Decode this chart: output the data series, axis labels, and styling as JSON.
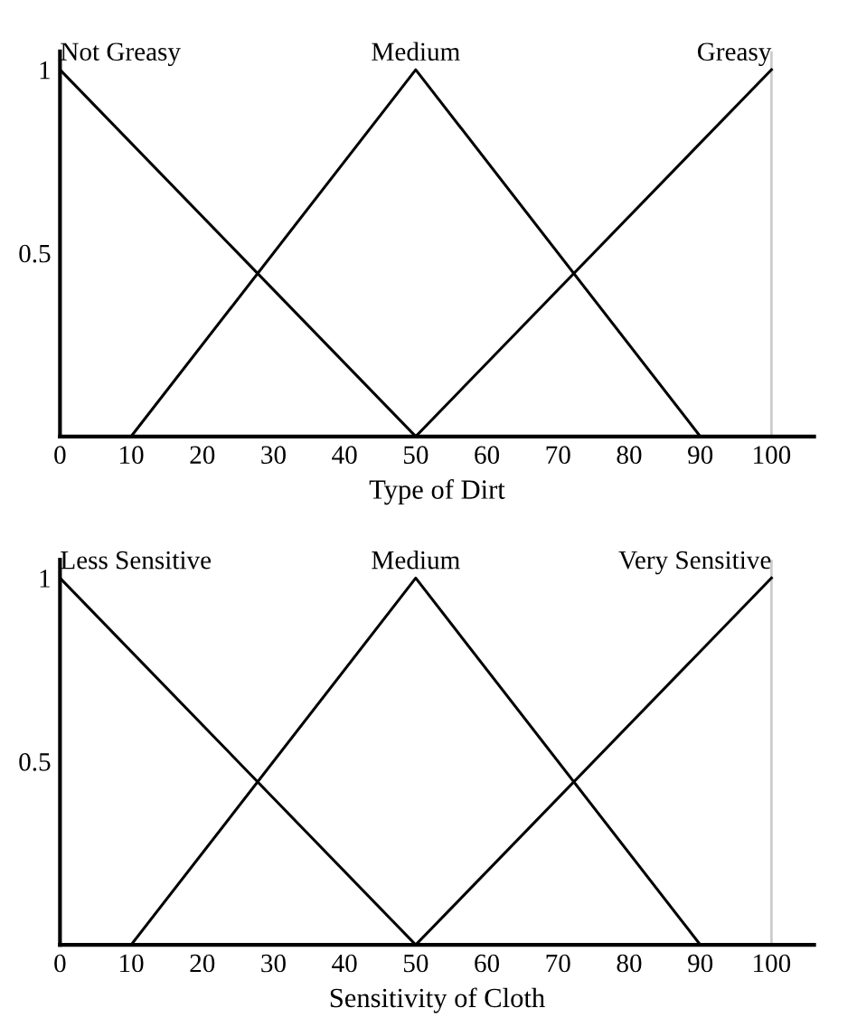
{
  "chart_data": [
    {
      "type": "line",
      "xlabel": "Type of Dirt",
      "xlim": [
        0,
        106
      ],
      "ylim": [
        0,
        1.05
      ],
      "xticks": [
        0,
        10,
        20,
        30,
        40,
        50,
        60,
        70,
        80,
        90,
        100
      ],
      "yticks": [
        0.5,
        1
      ],
      "grid": false,
      "legend": false,
      "marker": "none",
      "line_style": "solid",
      "ref_lines": [
        {
          "axis": "x",
          "value": 100,
          "color": "#cccccc"
        }
      ],
      "series": [
        {
          "name": "Not Greasy",
          "color": "#000000",
          "x": [
            0,
            50
          ],
          "values": [
            1,
            0
          ]
        },
        {
          "name": "Medium",
          "color": "#000000",
          "x": [
            10,
            50,
            90
          ],
          "values": [
            0,
            1,
            0
          ]
        },
        {
          "name": "Greasy",
          "color": "#000000",
          "x": [
            50,
            100
          ],
          "values": [
            0,
            1
          ]
        }
      ]
    },
    {
      "type": "line",
      "xlabel": "Sensitivity of Cloth",
      "xlim": [
        0,
        106
      ],
      "ylim": [
        0,
        1.05
      ],
      "xticks": [
        0,
        10,
        20,
        30,
        40,
        50,
        60,
        70,
        80,
        90,
        100
      ],
      "yticks": [
        0.5,
        1
      ],
      "grid": false,
      "legend": false,
      "marker": "none",
      "line_style": "solid",
      "ref_lines": [
        {
          "axis": "x",
          "value": 100,
          "color": "#cccccc"
        }
      ],
      "series": [
        {
          "name": "Less Sensitive",
          "color": "#000000",
          "x": [
            0,
            50
          ],
          "values": [
            1,
            0
          ]
        },
        {
          "name": "Medium",
          "color": "#000000",
          "x": [
            10,
            50,
            90
          ],
          "values": [
            0,
            1,
            0
          ]
        },
        {
          "name": "Very Sensitive",
          "color": "#000000",
          "x": [
            50,
            100
          ],
          "values": [
            0,
            1
          ]
        }
      ]
    }
  ]
}
